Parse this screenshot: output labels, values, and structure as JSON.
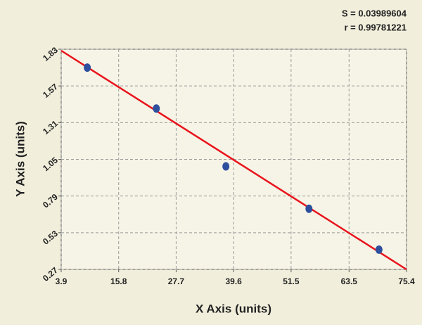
{
  "chart_data": {
    "type": "scatter",
    "annotations": [
      "S = 0.03989604",
      "r = 0.99781221"
    ],
    "x_label": "X Axis (units)",
    "y_label": "Y Axis (units)",
    "x": [
      9.3,
      23.6,
      38.0,
      55.2,
      69.7
    ],
    "values": [
      1.7,
      1.41,
      1.0,
      0.7,
      0.41
    ],
    "color": "#2d4f9e",
    "fit_line": {
      "color": "#e8141c",
      "x": [
        3.9,
        75.4
      ],
      "y": [
        1.82,
        0.27
      ]
    },
    "xlim": [
      3.9,
      75.4
    ],
    "xticks": [
      3.9,
      15.8,
      27.7,
      39.6,
      51.5,
      63.5,
      75.4
    ],
    "ylim": [
      0.27,
      1.83
    ],
    "yticks": [
      0.27,
      0.53,
      0.79,
      1.05,
      1.31,
      1.57,
      1.83
    ],
    "grid": true
  }
}
